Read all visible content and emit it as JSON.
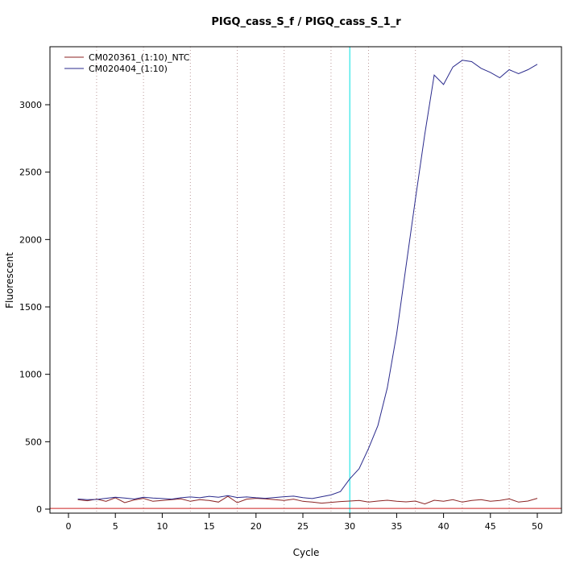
{
  "chart_data": {
    "type": "line",
    "title": "PIGQ_cass_S_f / PIGQ_cass_S_1_r",
    "xlabel": "Cycle",
    "ylabel": "Fluorescent",
    "xlim": [
      -2,
      52
    ],
    "ylim": [
      -60,
      3430
    ],
    "xticks": [
      0,
      5,
      10,
      15,
      20,
      25,
      30,
      35,
      40,
      45,
      50
    ],
    "yticks": [
      0,
      500,
      1000,
      1500,
      2000,
      2500,
      3000
    ],
    "grid": "dotted-vertical",
    "grid_x_dotted": [
      3,
      8,
      13,
      18,
      23,
      28,
      32,
      37,
      42,
      47
    ],
    "grid_color": "#bb9999",
    "legend_position": "top-left",
    "ct_marker_line": {
      "x": 30,
      "color": "#00e0e0"
    },
    "baseline_line": {
      "y": 5,
      "color": "#cc2222"
    },
    "x": [
      1,
      2,
      3,
      4,
      5,
      6,
      7,
      8,
      9,
      10,
      11,
      12,
      13,
      14,
      15,
      16,
      17,
      18,
      19,
      20,
      21,
      22,
      23,
      24,
      25,
      26,
      27,
      28,
      29,
      30,
      31,
      32,
      33,
      34,
      35,
      36,
      37,
      38,
      39,
      40,
      41,
      42,
      43,
      44,
      45,
      46,
      47,
      48,
      49,
      50
    ],
    "series": [
      {
        "name": "CM020361_(1:10)_NTC",
        "color": "#8b2222",
        "values": [
          70,
          62,
          74,
          58,
          84,
          48,
          68,
          80,
          58,
          64,
          70,
          76,
          58,
          70,
          64,
          52,
          95,
          48,
          74,
          80,
          76,
          70,
          64,
          74,
          58,
          52,
          44,
          50,
          56,
          60,
          64,
          52,
          60,
          66,
          58,
          54,
          60,
          38,
          66,
          58,
          70,
          52,
          64,
          70,
          58,
          64,
          76,
          52,
          60,
          80
        ]
      },
      {
        "name": "CM020404_(1:10)",
        "color": "#2a2a8c",
        "values": [
          75,
          70,
          72,
          80,
          88,
          82,
          75,
          88,
          82,
          78,
          74,
          84,
          90,
          84,
          95,
          88,
          100,
          86,
          90,
          84,
          80,
          86,
          92,
          96,
          85,
          78,
          92,
          105,
          130,
          225,
          300,
          450,
          620,
          900,
          1300,
          1800,
          2300,
          2780,
          3220,
          3150,
          3280,
          3330,
          3320,
          3270,
          3240,
          3200,
          3260,
          3230,
          3260,
          3300
        ]
      }
    ]
  }
}
